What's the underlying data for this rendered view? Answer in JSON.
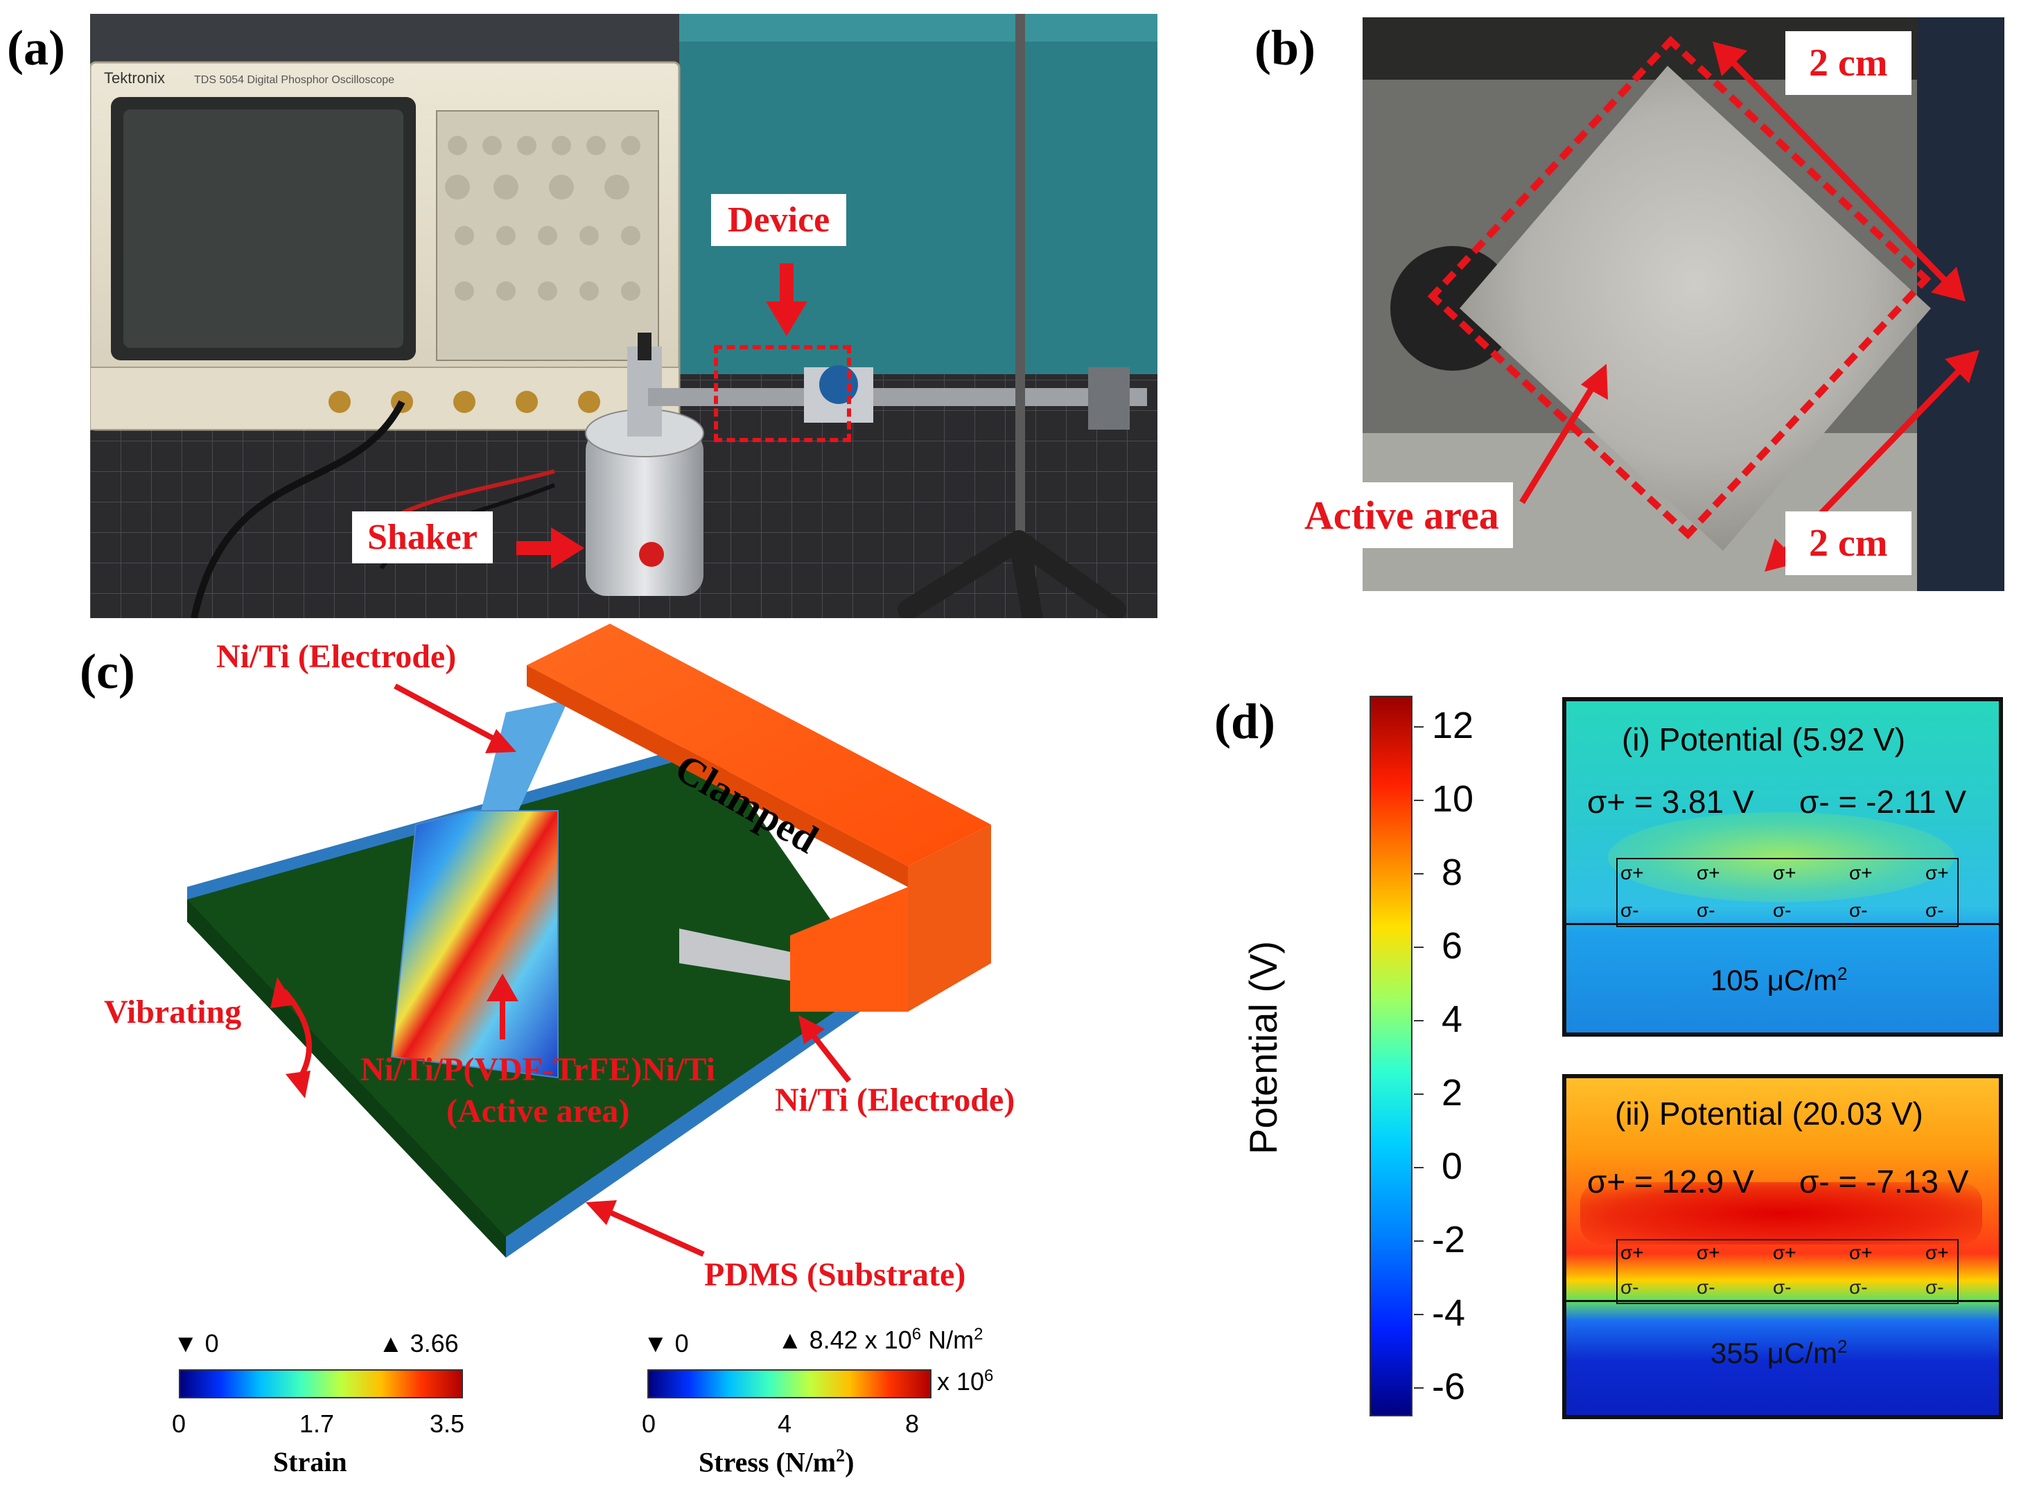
{
  "panels": {
    "a": {
      "label": "(a)",
      "device_label": "Device",
      "shaker_label": "Shaker",
      "scope_brand": "Tektronix",
      "scope_model": "TDS 5054 Digital Phosphor Oscilloscope"
    },
    "b": {
      "label": "(b)",
      "dim_top": "2 cm",
      "dim_bottom": "2 cm",
      "active_area": "Active area"
    },
    "c": {
      "label": "(c)",
      "electrode_top": "Ni/Ti (Electrode)",
      "clamped": "Clamped",
      "vibrating": "Vibrating",
      "active_line1": "Ni/Ti/P(VDF-TrFE)Ni/Ti",
      "active_line2": "(Active area)",
      "electrode_right": "Ni/Ti (Electrode)",
      "substrate": "PDMS (Substrate)",
      "strain_bar": {
        "min_marker": "▼ 0",
        "max_marker": "▲ 3.66",
        "ticks": [
          "0",
          "1.7",
          "3.5"
        ],
        "title": "Strain"
      },
      "stress_bar": {
        "min_marker": "▼ 0",
        "max_marker_prefix": "▲ 8.42 x 10",
        "max_marker_exp": "6",
        "max_marker_unit_pre": " N/m",
        "max_marker_unit_exp": "2",
        "multiplier_prefix": "x 10",
        "multiplier_exp": "6",
        "ticks": [
          "0",
          "4",
          "8"
        ],
        "title_pre": "Stress (N/m",
        "title_exp": "2",
        "title_post": ")"
      }
    },
    "d": {
      "label": "(d)",
      "colorbar_title": "Potential (V)",
      "colorbar_ticks": [
        "12",
        "10",
        "8",
        "6",
        "4",
        "2",
        "0",
        "-2",
        "-4",
        "-6"
      ],
      "sim_i": {
        "title": "(i) Potential  (5.92 V)",
        "sigma_plus": "σ+ = 3.81 V",
        "sigma_minus": "σ- = -2.11 V",
        "charge_pre": "105 μC/m",
        "charge_exp": "2"
      },
      "sim_ii": {
        "title": "(ii) Potential  (20.03 V)",
        "sigma_plus": "σ+ = 12.9 V",
        "sigma_minus": "σ- = -7.13 V",
        "charge_pre": "355 μC/m",
        "charge_exp": "2"
      },
      "plus_sign": "σ+",
      "minus_sign": "σ-"
    }
  },
  "colors": {
    "accent_red": "#e8141b",
    "clamp_orange": "#ff5a10",
    "substrate_green": "#0f4f15",
    "substrate_edge_blue": "#2f7cc4"
  }
}
